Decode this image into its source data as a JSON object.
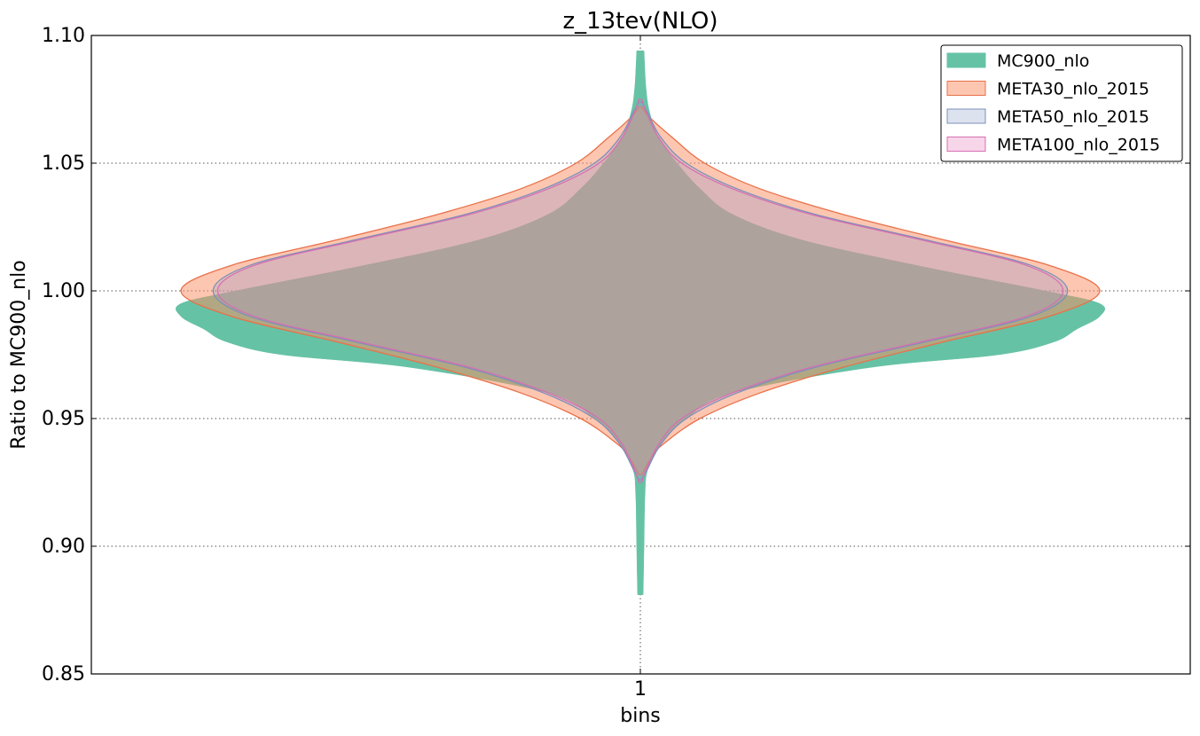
{
  "chart_data": {
    "type": "violin",
    "title": "z_13tev(NLO)",
    "xlabel": "bins",
    "ylabel": "Ratio to MC900_nlo",
    "categories": [
      "1"
    ],
    "ylim": [
      0.85,
      1.1
    ],
    "yticks": [
      "0.85",
      "0.90",
      "0.95",
      "1.00",
      "1.05",
      "1.10"
    ],
    "grid": true,
    "legend_position": "top-right",
    "series": [
      {
        "name": "MC900_nlo",
        "color": "#66c2a5",
        "edge": "#66c2a5",
        "opacity": 1.0,
        "profile": [
          [
            0.881,
            0.006
          ],
          [
            0.9,
            0.008
          ],
          [
            0.92,
            0.01
          ],
          [
            0.93,
            0.016
          ],
          [
            0.94,
            0.045
          ],
          [
            0.95,
            0.1
          ],
          [
            0.96,
            0.2
          ],
          [
            0.97,
            0.5
          ],
          [
            0.975,
            0.78
          ],
          [
            0.98,
            0.9
          ],
          [
            0.985,
            0.95
          ],
          [
            0.99,
            1.0
          ],
          [
            0.995,
            1.0
          ],
          [
            1.0,
            0.88
          ],
          [
            1.01,
            0.6
          ],
          [
            1.02,
            0.35
          ],
          [
            1.03,
            0.2
          ],
          [
            1.04,
            0.13
          ],
          [
            1.05,
            0.08
          ],
          [
            1.06,
            0.04
          ],
          [
            1.07,
            0.02
          ],
          [
            1.08,
            0.012
          ],
          [
            1.094,
            0.008
          ]
        ]
      },
      {
        "name": "META30_nlo_2015",
        "color": "#fc8d62",
        "edge": "#e8714a",
        "opacity": 0.5,
        "profile": [
          [
            0.928,
            0.003
          ],
          [
            0.935,
            0.025
          ],
          [
            0.94,
            0.05
          ],
          [
            0.95,
            0.13
          ],
          [
            0.96,
            0.26
          ],
          [
            0.97,
            0.44
          ],
          [
            0.98,
            0.66
          ],
          [
            0.99,
            0.89
          ],
          [
            1.0,
            1.0
          ],
          [
            1.01,
            0.89
          ],
          [
            1.02,
            0.66
          ],
          [
            1.03,
            0.44
          ],
          [
            1.04,
            0.26
          ],
          [
            1.05,
            0.14
          ],
          [
            1.06,
            0.07
          ],
          [
            1.068,
            0.02
          ],
          [
            1.072,
            0.003
          ]
        ]
      },
      {
        "name": "META50_nlo_2015",
        "color": "#8da0cb",
        "edge": "#7d8fba",
        "opacity": 0.3,
        "profile": [
          [
            0.926,
            0.003
          ],
          [
            0.93,
            0.015
          ],
          [
            0.94,
            0.045
          ],
          [
            0.95,
            0.1
          ],
          [
            0.96,
            0.21
          ],
          [
            0.97,
            0.38
          ],
          [
            0.98,
            0.62
          ],
          [
            0.99,
            0.85
          ],
          [
            1.0,
            0.93
          ],
          [
            1.01,
            0.85
          ],
          [
            1.02,
            0.62
          ],
          [
            1.03,
            0.38
          ],
          [
            1.04,
            0.21
          ],
          [
            1.05,
            0.1
          ],
          [
            1.06,
            0.045
          ],
          [
            1.07,
            0.015
          ],
          [
            1.074,
            0.003
          ]
        ]
      },
      {
        "name": "META100_nlo_2015",
        "color": "#e78ac3",
        "edge": "#d66fb0",
        "opacity": 0.1,
        "profile": [
          [
            0.925,
            0.003
          ],
          [
            0.93,
            0.013
          ],
          [
            0.94,
            0.04
          ],
          [
            0.95,
            0.09
          ],
          [
            0.96,
            0.2
          ],
          [
            0.97,
            0.37
          ],
          [
            0.98,
            0.61
          ],
          [
            0.99,
            0.84
          ],
          [
            1.0,
            0.92
          ],
          [
            1.01,
            0.84
          ],
          [
            1.02,
            0.61
          ],
          [
            1.03,
            0.37
          ],
          [
            1.04,
            0.2
          ],
          [
            1.05,
            0.09
          ],
          [
            1.06,
            0.04
          ],
          [
            1.07,
            0.013
          ],
          [
            1.075,
            0.003
          ]
        ]
      }
    ]
  }
}
